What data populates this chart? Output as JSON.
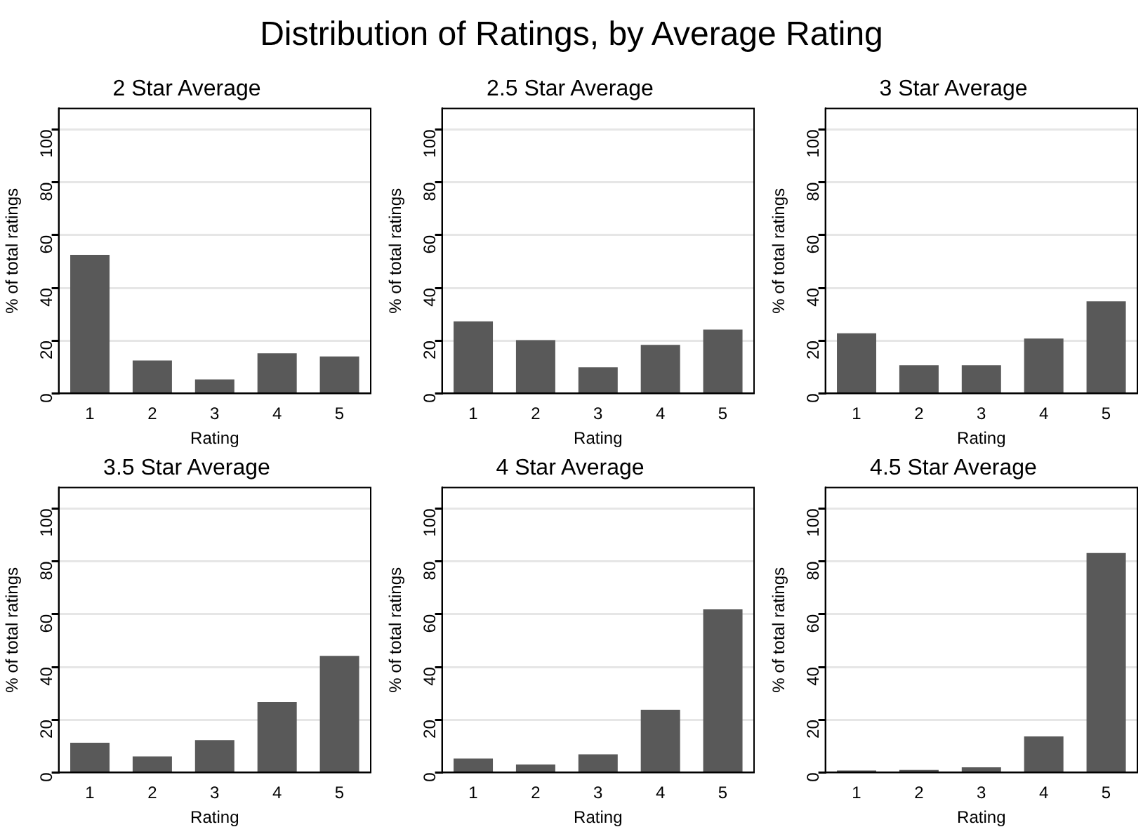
{
  "chart_data": [
    {
      "type": "other",
      "title": "Distribution of Ratings, by Average Rating"
    },
    {
      "type": "bar",
      "title": "2 Star Average",
      "xlabel": "Rating",
      "ylabel": "% of total ratings",
      "categories": [
        "1",
        "2",
        "3",
        "4",
        "5"
      ],
      "values": [
        52.5,
        12.5,
        5.3,
        15.2,
        14.0
      ],
      "color": "#595959",
      "ylim": [
        0,
        108
      ],
      "yticks": [
        0,
        20,
        40,
        60,
        80,
        100
      ],
      "grid": "y"
    },
    {
      "type": "bar",
      "title": "2.5 Star Average",
      "xlabel": "Rating",
      "ylabel": "% of total ratings",
      "categories": [
        "1",
        "2",
        "3",
        "4",
        "5"
      ],
      "values": [
        27.3,
        20.2,
        9.9,
        18.4,
        24.2
      ],
      "color": "#595959",
      "ylim": [
        0,
        108
      ],
      "yticks": [
        0,
        20,
        40,
        60,
        80,
        100
      ],
      "grid": "y"
    },
    {
      "type": "bar",
      "title": "3 Star Average",
      "xlabel": "Rating",
      "ylabel": "% of total ratings",
      "categories": [
        "1",
        "2",
        "3",
        "4",
        "5"
      ],
      "values": [
        22.8,
        10.7,
        10.7,
        20.8,
        34.9
      ],
      "color": "#595959",
      "ylim": [
        0,
        108
      ],
      "yticks": [
        0,
        20,
        40,
        60,
        80,
        100
      ],
      "grid": "y"
    },
    {
      "type": "bar",
      "title": "3.5 Star Average",
      "xlabel": "Rating",
      "ylabel": "% of total ratings",
      "categories": [
        "1",
        "2",
        "3",
        "4",
        "5"
      ],
      "values": [
        11.3,
        6.1,
        12.3,
        26.7,
        44.2
      ],
      "color": "#595959",
      "ylim": [
        0,
        108
      ],
      "yticks": [
        0,
        20,
        40,
        60,
        80,
        100
      ],
      "grid": "y"
    },
    {
      "type": "bar",
      "title": "4 Star Average",
      "xlabel": "Rating",
      "ylabel": "% of total ratings",
      "categories": [
        "1",
        "2",
        "3",
        "4",
        "5"
      ],
      "values": [
        5.3,
        3.0,
        6.9,
        23.8,
        61.8
      ],
      "color": "#595959",
      "ylim": [
        0,
        108
      ],
      "yticks": [
        0,
        20,
        40,
        60,
        80,
        100
      ],
      "grid": "y"
    },
    {
      "type": "bar",
      "title": "4.5 Star Average",
      "xlabel": "Rating",
      "ylabel": "% of total ratings",
      "categories": [
        "1",
        "2",
        "3",
        "4",
        "5"
      ],
      "values": [
        0.8,
        1.0,
        2.0,
        13.7,
        83.2
      ],
      "color": "#595959",
      "ylim": [
        0,
        108
      ],
      "yticks": [
        0,
        20,
        40,
        60,
        80,
        100
      ],
      "grid": "y"
    }
  ]
}
